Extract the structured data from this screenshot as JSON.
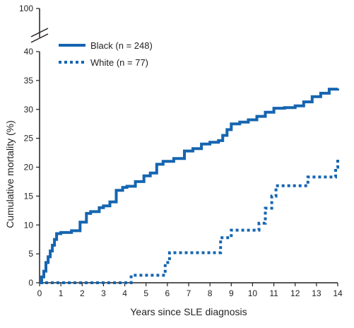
{
  "chart_data": {
    "type": "line",
    "title": "",
    "xlabel": "Years since SLE diagnosis",
    "ylabel": "Cumulative mortality (%)",
    "xlim": [
      0,
      14
    ],
    "ylim": [
      0,
      40
    ],
    "y_axis_break": true,
    "y_break_top_value": 100,
    "x_ticks": [
      "0",
      "1",
      "2",
      "3",
      "4",
      "5",
      "6",
      "7",
      "8",
      "9",
      "10",
      "11",
      "12",
      "13",
      "14"
    ],
    "y_ticks": [
      "0",
      "5",
      "10",
      "15",
      "20",
      "25",
      "30",
      "35",
      "40"
    ],
    "y_top_label": "100",
    "grid": false,
    "legend_placement": "top-left",
    "series": [
      {
        "name": "Black (n = 248)",
        "color": "#1565b0",
        "style": "solid",
        "x": [
          0,
          0.1,
          0.2,
          0.3,
          0.4,
          0.5,
          0.6,
          0.7,
          0.8,
          1.0,
          1.5,
          1.9,
          2.2,
          2.4,
          2.8,
          3.0,
          3.3,
          3.6,
          3.9,
          4.1,
          4.5,
          4.9,
          5.2,
          5.5,
          5.8,
          6.3,
          6.8,
          7.2,
          7.6,
          8.0,
          8.4,
          8.6,
          8.8,
          9.0,
          9.4,
          9.8,
          10.2,
          10.6,
          11.0,
          11.5,
          12.0,
          12.4,
          12.8,
          13.2,
          13.6,
          14.0
        ],
        "y": [
          0,
          1,
          2,
          3.5,
          4.5,
          5.5,
          6.5,
          7.5,
          8.5,
          8.7,
          9.0,
          10.5,
          12.0,
          12.3,
          13.0,
          13.3,
          14.0,
          16.0,
          16.5,
          16.7,
          17.5,
          18.5,
          19.0,
          20.5,
          21.0,
          21.5,
          22.8,
          23.2,
          24.0,
          24.3,
          24.6,
          25.5,
          26.5,
          27.5,
          27.8,
          28.2,
          28.8,
          29.5,
          30.2,
          30.3,
          30.6,
          31.3,
          32.2,
          32.8,
          33.5,
          33.6
        ]
      },
      {
        "name": "White (n = 77)",
        "color": "#1565b0",
        "style": "dotted",
        "x": [
          0,
          4.0,
          4.3,
          5.6,
          5.9,
          6.1,
          8.2,
          8.5,
          9.0,
          10.0,
          10.3,
          10.6,
          10.9,
          11.1,
          12.4,
          12.6,
          13.7,
          13.9,
          14.0
        ],
        "y": [
          0,
          0,
          1.3,
          1.3,
          3.5,
          5.2,
          5.2,
          7.8,
          9.1,
          9.1,
          10.3,
          12.9,
          15.0,
          16.8,
          16.8,
          18.3,
          18.3,
          20.0,
          21.5
        ]
      }
    ]
  }
}
